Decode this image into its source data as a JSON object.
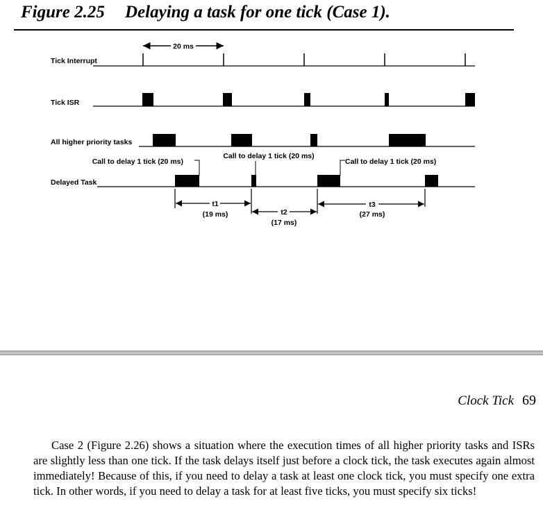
{
  "figure": {
    "number": "Figure 2.25",
    "title": "Delaying a task for one tick (Case 1)."
  },
  "diagram": {
    "period_label": "20 ms",
    "rows": [
      {
        "key": "tick_interrupt",
        "label": "Tick Interrupt"
      },
      {
        "key": "tick_isr",
        "label": "Tick ISR"
      },
      {
        "key": "higher_tasks",
        "label": "All higher priority tasks"
      },
      {
        "key": "delayed_task",
        "label": "Delayed Task"
      }
    ],
    "calls": [
      "Call to delay 1 tick (20 ms)",
      "Call to delay 1 tick (20 ms)",
      "Call to delay 1 tick (20 ms)"
    ],
    "intervals": [
      {
        "name": "t1",
        "value": "(19 ms)"
      },
      {
        "name": "t2",
        "value": "(17 ms)"
      },
      {
        "name": "t3",
        "value": "(27 ms)"
      }
    ]
  },
  "running_head": {
    "label": "Clock Tick",
    "page": "69"
  },
  "body_text": "Case 2 (Figure 2.26) shows a situation where the execution times of all higher priority tasks and ISRs are slightly less than one tick. If the task delays itself just before a clock tick, the task executes again almost immediately! Because of this, if you need to delay a task at least one clock tick, you must specify one extra tick. In other words, if you need to delay a task for at least five ticks, you must specify six ticks!"
}
